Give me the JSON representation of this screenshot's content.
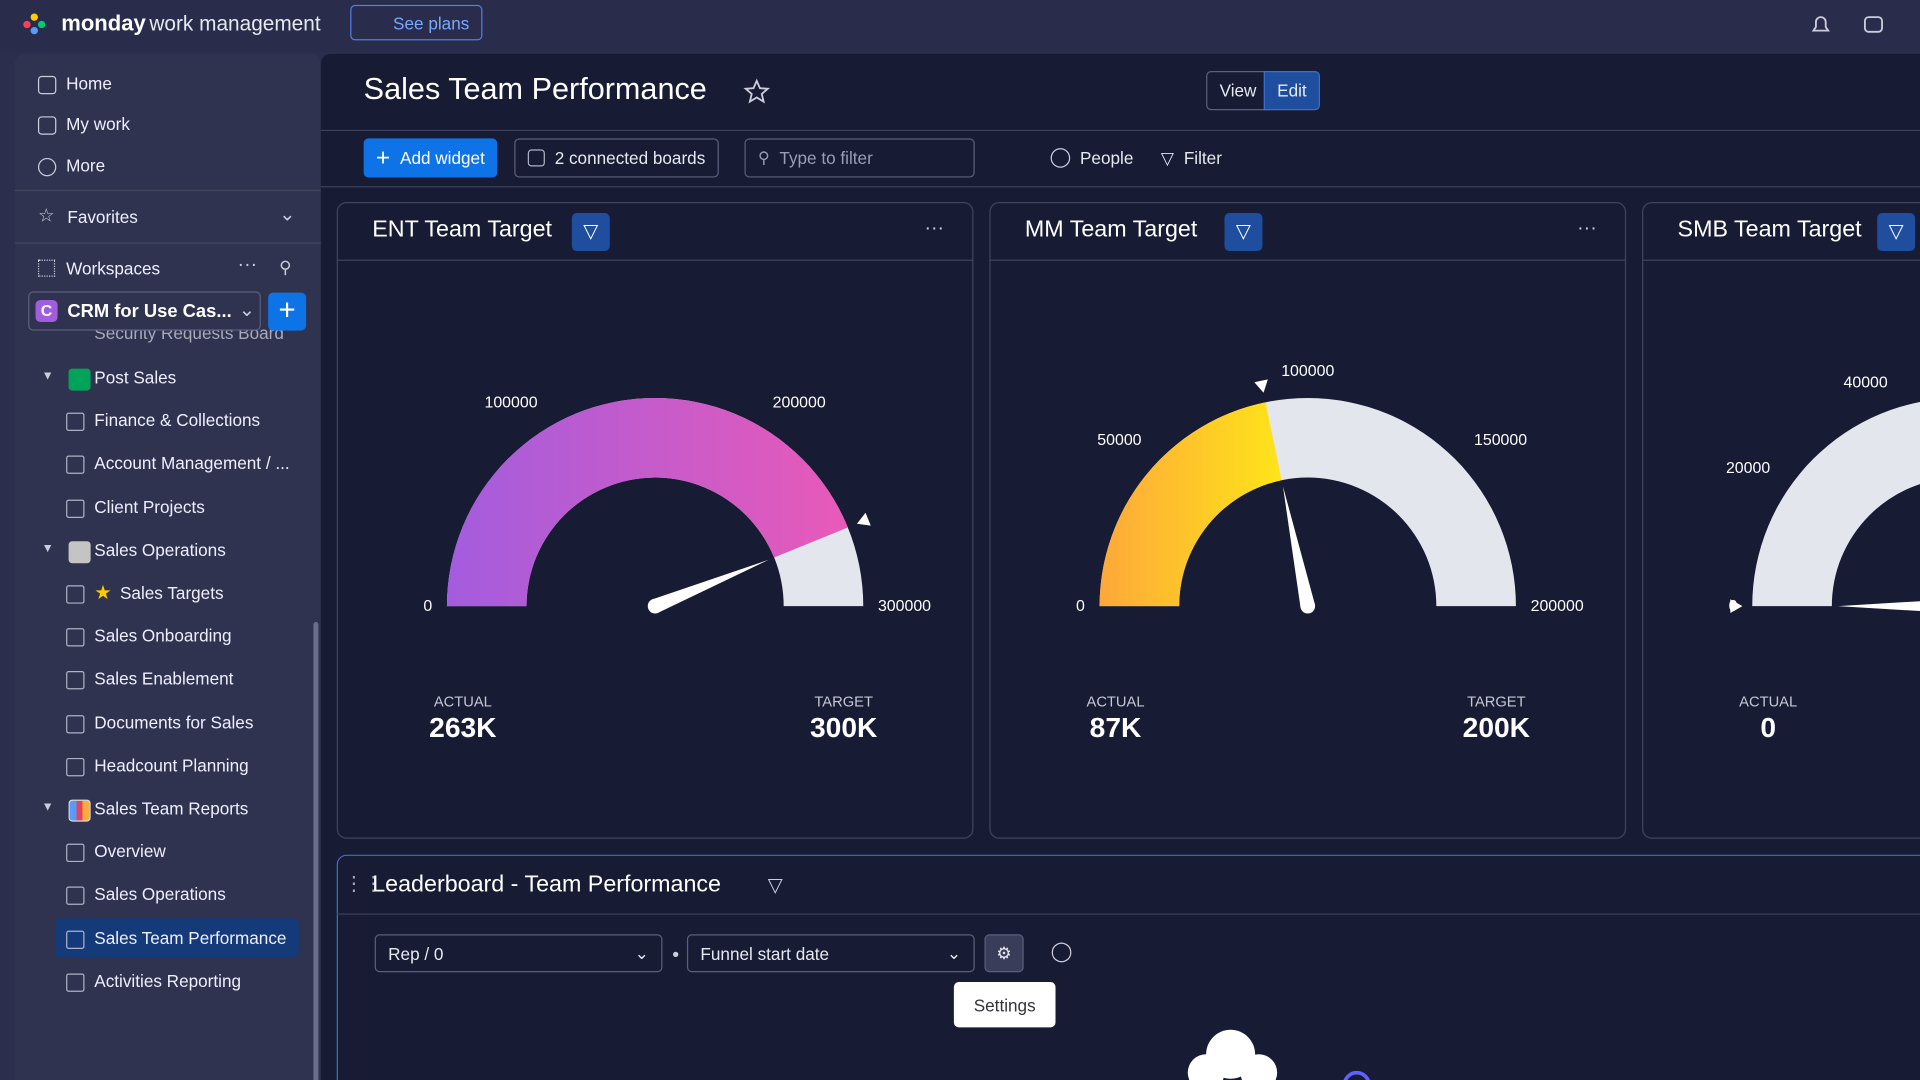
{
  "topbar": {
    "brand": "monday",
    "product": "work management",
    "see_plans": "See plans"
  },
  "sidebar": {
    "nav": [
      "Home",
      "My work",
      "More"
    ],
    "favorites": "Favorites",
    "workspaces": "Workspaces",
    "workspace": {
      "initial": "C",
      "name": "CRM for Use Cas..."
    },
    "clipped_item": "Security Requests Board",
    "groups": [
      {
        "name": "Post Sales",
        "items": [
          "Finance & Collections",
          "Account Management / ...",
          "Client Projects"
        ]
      },
      {
        "name": "Sales Operations",
        "items": [
          "Sales Targets",
          "Sales Onboarding",
          "Sales Enablement",
          "Documents for Sales",
          "Headcount Planning"
        ]
      },
      {
        "name": "Sales Team Reports",
        "items": [
          "Overview",
          "Sales Operations",
          "Sales Team Performance",
          "Activities Reporting"
        ]
      }
    ]
  },
  "header": {
    "title": "Sales Team Performance",
    "view": "View",
    "edit": "Edit"
  },
  "toolbar": {
    "add_widget": "Add widget",
    "connected_boards": "2 connected boards",
    "filter_placeholder": "Type to filter",
    "people": "People",
    "filter": "Filter"
  },
  "widgets": [
    {
      "title": "ENT Team Target",
      "colors": [
        "#a35cde",
        "#e85ab8"
      ],
      "range": [
        0,
        300000
      ],
      "ticks": [
        0,
        100000,
        200000,
        300000
      ],
      "actual": {
        "label": "ACTUAL",
        "value": 263000,
        "text": "263K"
      },
      "target": {
        "label": "TARGET",
        "value": 300000,
        "text": "300K"
      }
    },
    {
      "title": "MM Team Target",
      "colors": [
        "#fda83a",
        "#ffe419"
      ],
      "range": [
        0,
        200000
      ],
      "ticks": [
        0,
        50000,
        100000,
        150000,
        200000
      ],
      "actual": {
        "label": "ACTUAL",
        "value": 87000,
        "text": "87K"
      },
      "target": {
        "label": "TARGET",
        "value": 200000,
        "text": "200K"
      }
    },
    {
      "title": "SMB Team Target",
      "colors": [
        "#a35cde",
        "#e85ab8"
      ],
      "range": [
        0,
        100000
      ],
      "ticks": [
        0,
        20000,
        40000
      ],
      "actual": {
        "label": "ACTUAL",
        "value": 0,
        "text": "0"
      }
    }
  ],
  "leaderboard": {
    "title": "Leaderboard - Team Performance",
    "group_by": "Rep / 0",
    "date_field": "Funnel start date",
    "tooltip": "Settings"
  }
}
